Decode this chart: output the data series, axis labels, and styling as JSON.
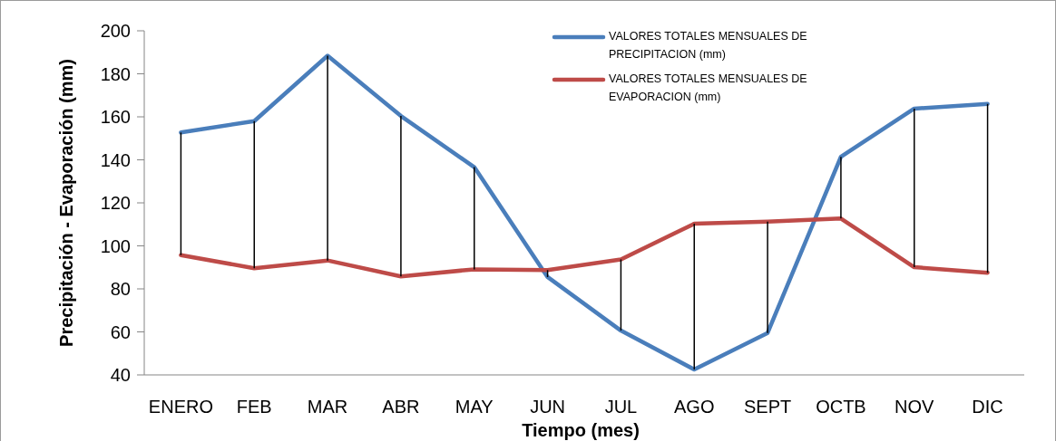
{
  "chart_data": {
    "type": "line",
    "xlabel": "Tiempo (mes)",
    "ylabel": "Precipitación - Evaporación (mm)",
    "categories": [
      "ENERO",
      "FEB",
      "MAR",
      "ABR",
      "MAY",
      "JUN",
      "JUL",
      "AGO",
      "SEPT",
      "OCTB",
      "NOV",
      "DIC"
    ],
    "series": [
      {
        "name": "VALORES TOTALES MENSUALES DE PRECIPITACION (mm)",
        "color": "#4a7ebb",
        "values": [
          152.7,
          158,
          188.4,
          160.4,
          136.6,
          85.5,
          60.6,
          42.5,
          59.5,
          141.4,
          163.8,
          166
        ],
        "errors": [
          [
            95.7,
            152.7
          ],
          [
            89.6,
            158
          ],
          [
            93.2,
            188.4
          ],
          [
            85.8,
            160.4
          ],
          [
            89.1,
            136.6
          ],
          [
            85.5,
            88.7
          ],
          [
            60.6,
            93.7
          ],
          [
            42.5,
            110.3
          ],
          [
            59.5,
            111.3
          ],
          [
            112.7,
            141.4
          ],
          [
            90.1,
            163.8
          ],
          [
            87.5,
            166
          ]
        ]
      },
      {
        "name": "VALORES TOTALES MENSUALES DE EVAPORACION (mm)",
        "color": "#be4b48",
        "values": [
          95.7,
          89.6,
          93.2,
          85.8,
          89.1,
          88.7,
          93.7,
          110.3,
          111.3,
          112.7,
          90.1,
          87.5
        ]
      }
    ],
    "ylim": [
      40,
      200
    ],
    "yticks": [
      40,
      60,
      80,
      100,
      120,
      140,
      160,
      180,
      200
    ],
    "grid": false,
    "legend": "top right",
    "marker": "none",
    "line_style": "solid"
  }
}
